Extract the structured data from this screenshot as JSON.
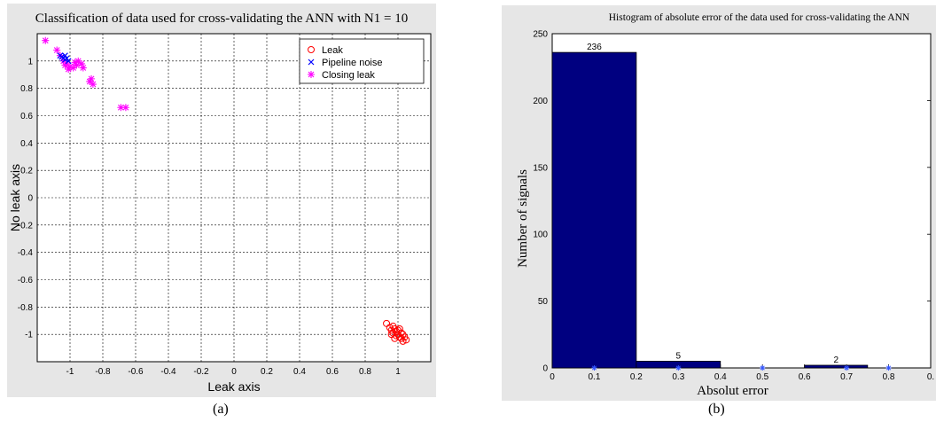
{
  "captions": {
    "a": "(a)",
    "b": "(b)"
  },
  "chart_data": [
    {
      "type": "scatter",
      "title": "Classification of data used for cross-validating the ANN with N1 = 10",
      "xlabel": "Leak axis",
      "ylabel": "No leak axis",
      "xlim": [
        -1.2,
        1.2
      ],
      "ylim": [
        -1.2,
        1.2
      ],
      "xticks": [
        "-1",
        "-0.8",
        "-0.6",
        "-0.4",
        "-0.2",
        "0",
        "0.2",
        "0.4",
        "0.6",
        "0.8",
        "1"
      ],
      "yticks": [
        "1",
        "0.8",
        "0.6",
        "0.4",
        "0.2",
        "0",
        "-0.2",
        "-0.4",
        "-0.6",
        "-0.8",
        "-1"
      ],
      "grid": true,
      "legend_position": "top-right",
      "colors": {
        "leak": "#ff0000",
        "pipeline_noise": "#0000ff",
        "closing_leak": "#ff00ff"
      },
      "series": [
        {
          "name": "Leak",
          "marker": "circle",
          "points": [
            [
              0.93,
              -0.92
            ],
            [
              0.95,
              -0.95
            ],
            [
              0.96,
              -0.97
            ],
            [
              0.97,
              -0.94
            ],
            [
              0.98,
              -0.96
            ],
            [
              0.99,
              -0.98
            ],
            [
              1.0,
              -1.0
            ],
            [
              1.01,
              -1.02
            ],
            [
              1.02,
              -1.03
            ],
            [
              1.03,
              -1.05
            ],
            [
              0.97,
              -0.99
            ],
            [
              0.99,
              -1.01
            ],
            [
              1.0,
              -0.97
            ],
            [
              1.02,
              -0.99
            ],
            [
              1.04,
              -1.02
            ],
            [
              1.05,
              -1.04
            ],
            [
              0.98,
              -1.03
            ],
            [
              1.01,
              -0.96
            ],
            [
              0.96,
              -1.0
            ],
            [
              1.03,
              -1.0
            ]
          ]
        },
        {
          "name": "Pipeline noise",
          "marker": "x",
          "points": [
            [
              -1.05,
              1.03
            ],
            [
              -1.04,
              1.02
            ],
            [
              -1.03,
              1.01
            ],
            [
              -1.02,
              1.02
            ],
            [
              -1.06,
              1.04
            ],
            [
              -1.01,
              1.0
            ],
            [
              -1.03,
              1.04
            ]
          ]
        },
        {
          "name": "Closing leak",
          "marker": "star",
          "points": [
            [
              -1.15,
              1.15
            ],
            [
              -1.08,
              1.08
            ],
            [
              -1.06,
              1.04
            ],
            [
              -1.04,
              1.0
            ],
            [
              -1.02,
              0.98
            ],
            [
              -1.0,
              0.96
            ],
            [
              -0.98,
              0.95
            ],
            [
              -0.96,
              0.97
            ],
            [
              -0.97,
              0.99
            ],
            [
              -0.95,
              1.0
            ],
            [
              -0.93,
              0.98
            ],
            [
              -0.92,
              0.95
            ],
            [
              -1.01,
              0.94
            ],
            [
              -1.03,
              0.97
            ],
            [
              -0.87,
              0.87
            ],
            [
              -0.86,
              0.83
            ],
            [
              -0.88,
              0.85
            ],
            [
              -0.69,
              0.66
            ],
            [
              -0.66,
              0.66
            ]
          ]
        }
      ]
    },
    {
      "type": "bar",
      "title": "Histogram of absolute error of the data used for cross-validating the ANN",
      "xlabel": "Absolut error",
      "ylabel": "Number of signals",
      "xlim": [
        0,
        0.9
      ],
      "ylim": [
        0,
        250
      ],
      "xticks": [
        "0",
        "0.1",
        "0.2",
        "0.3",
        "0.4",
        "0.5",
        "0.6",
        "0.7",
        "0.8",
        "0."
      ],
      "yticks": [
        "0",
        "50",
        "100",
        "150",
        "200",
        "250"
      ],
      "bar_color": "#000080",
      "bins": [
        {
          "x0": 0.0,
          "x1": 0.2,
          "value": 236,
          "label": "236"
        },
        {
          "x0": 0.2,
          "x1": 0.4,
          "value": 5,
          "label": "5"
        },
        {
          "x0": 0.6,
          "x1": 0.75,
          "value": 2,
          "label": "2"
        }
      ],
      "centers": [
        0.1,
        0.3,
        0.5,
        0.7,
        0.8
      ]
    }
  ]
}
